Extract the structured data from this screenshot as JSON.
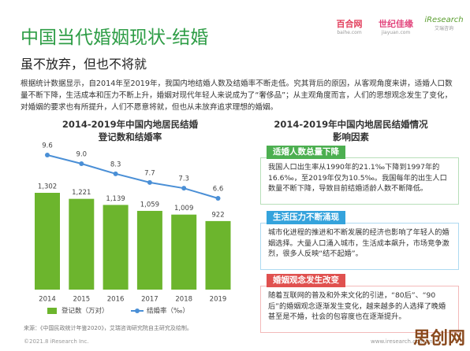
{
  "header": {
    "title": "中国当代婚姻现状-结婚",
    "subtitle": "虽不放弃，但也不将就"
  },
  "logos": [
    {
      "name": "百合网",
      "url": "baihe.com"
    },
    {
      "name": "世纪佳缘",
      "url": "jiayuan.com"
    },
    {
      "name": "iResearch",
      "url": "艾瑞咨询"
    }
  ],
  "intro": "根据统计数据显示，自2014年至2019年，我国内地结婚人数及结婚率不断走低。究其背后的原因，从客观角度来讲，适婚人口数量不断下降，生活成本和压力不断上升，婚姻对现代年轻人来说成为了“奢侈品”；从主观角度而言，人们的思想观念发生了变化，对婚姻的要求也有所提升，人们不愿意将就，但也从未放弃追求理想的婚姻。",
  "chart_data": {
    "type": "bar",
    "title": [
      "2014-2019年中国内地居民结婚",
      "登记数和结婚率"
    ],
    "categories": [
      "2014",
      "2015",
      "2016",
      "2017",
      "2018",
      "2019"
    ],
    "series": [
      {
        "name": "登记数（万对）",
        "color": "#6cb52d",
        "type": "bar",
        "values": [
          1302,
          1221,
          1139,
          1059,
          1009,
          922
        ],
        "value_labels": [
          "1,302",
          "1,221",
          "1,139",
          "1,059",
          "1,009",
          "922"
        ]
      },
      {
        "name": "结婚率（‰）",
        "color": "#4a8fd6",
        "type": "line",
        "axis": "y2",
        "values": [
          9.6,
          9.0,
          8.3,
          7.7,
          7.3,
          6.6
        ],
        "value_labels": [
          "9.6",
          "9.0",
          "8.3",
          "7.7",
          "7.3",
          "6.6"
        ]
      }
    ]
  },
  "factors": {
    "title": [
      "2014-2019年中国内地居民结婚情况",
      "影响因素"
    ],
    "items": [
      {
        "heading": "适婚人数总量下降",
        "color": "#4caf50",
        "text": "我国人口出生率从1990年的21.1‰下降到1997年的16.6‰，至2019年仅为10.5‰。我国每年的出生人口数量不断下降，导致目前结婚适龄人数不断降低。"
      },
      {
        "heading": "生活压力不断涌现",
        "color": "#35a3dc",
        "text": "城市化进程的推进和不断发展的经济也影响了年轻人的婚姻选择。大量人口涌入城市，生活成本飙升，市场竞争激烈，很多人反映“结不起婚”。"
      },
      {
        "heading": "婚姻观念发生改变",
        "color": "#e0514f",
        "text": "随着互联网的普及和外来文化的引进，“80后”、“90后”的婚姻观念逐渐发生变化，越来越多的人选择了晚婚甚至是不婚，社会的包容度也在逐渐提升。"
      }
    ]
  },
  "source": "来源：《中国民政统计年鉴2020》，艾瑞咨询研究院自主研究及绘制。",
  "footer": {
    "copyright": "©2021.8 iResearch Inc.",
    "website": "www.iresearch.com.cn"
  },
  "watermark": "思创网"
}
